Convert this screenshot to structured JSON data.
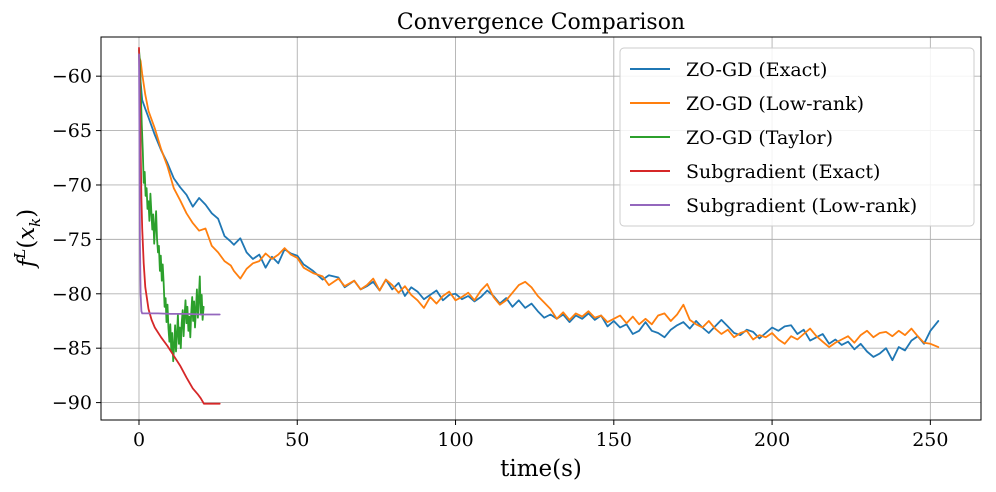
{
  "chart_data": {
    "type": "line",
    "title": "Convergence Comparison",
    "xlabel": "time(s)",
    "ylabel": "f^L(x_k)",
    "xlim": [
      -12,
      266
    ],
    "ylim": [
      -91.6,
      -56.4
    ],
    "xticks": [
      0,
      50,
      100,
      150,
      200,
      250
    ],
    "yticks": [
      -60,
      -65,
      -70,
      -75,
      -80,
      -85,
      -90
    ],
    "grid": true,
    "legend_position": "top-right",
    "series": [
      {
        "name": "ZO-GD (Exact)",
        "color": "#1f77b4",
        "x": [
          0,
          0.5,
          1,
          2,
          3,
          5,
          7,
          9,
          11,
          13,
          15,
          17,
          19,
          21,
          23,
          25,
          27,
          29,
          30,
          32,
          34,
          36,
          38,
          40,
          42,
          44,
          46,
          48,
          50,
          52,
          55,
          58,
          60,
          63,
          65,
          68,
          70,
          72,
          74,
          76,
          78,
          80,
          82,
          84,
          86,
          88,
          90,
          92,
          94,
          96,
          98,
          100,
          102,
          104,
          106,
          108,
          110,
          112,
          114,
          116,
          118,
          120,
          122,
          124,
          126,
          128,
          130,
          132,
          134,
          136,
          138,
          140,
          142,
          144,
          146,
          148,
          150,
          152,
          154,
          156,
          158,
          160,
          162,
          164,
          166,
          168,
          170,
          172,
          174,
          176,
          178,
          180,
          182,
          184,
          186,
          188,
          190,
          192,
          194,
          196,
          198,
          200,
          202,
          204,
          206,
          208,
          210,
          212,
          214,
          216,
          218,
          220,
          222,
          224,
          226,
          228,
          230,
          232,
          234,
          236,
          238,
          240,
          242,
          244,
          246,
          248,
          250,
          252.5
        ],
        "y": [
          -58.0,
          -60.5,
          -62.2,
          -63.0,
          -63.8,
          -65.4,
          -66.8,
          -68.0,
          -69.4,
          -70.2,
          -70.9,
          -72.0,
          -71.2,
          -71.8,
          -72.6,
          -73.1,
          -74.7,
          -75.2,
          -75.5,
          -74.9,
          -76.2,
          -76.8,
          -76.4,
          -77.6,
          -76.6,
          -77.2,
          -75.9,
          -76.3,
          -76.5,
          -77.3,
          -77.9,
          -78.7,
          -78.3,
          -78.5,
          -79.4,
          -78.8,
          -79.6,
          -79.3,
          -78.9,
          -79.7,
          -78.7,
          -79.6,
          -79.0,
          -80.2,
          -79.4,
          -79.8,
          -80.5,
          -80.1,
          -79.7,
          -80.6,
          -80.1,
          -80.0,
          -80.5,
          -80.2,
          -80.7,
          -80.3,
          -79.7,
          -80.2,
          -80.9,
          -80.4,
          -81.2,
          -80.6,
          -81.3,
          -80.9,
          -81.6,
          -82.2,
          -81.9,
          -82.3,
          -81.9,
          -82.6,
          -82.0,
          -82.3,
          -81.8,
          -82.4,
          -82.0,
          -83.0,
          -82.5,
          -83.1,
          -82.8,
          -83.7,
          -83.4,
          -82.6,
          -83.4,
          -83.6,
          -84.0,
          -83.3,
          -82.9,
          -82.6,
          -83.2,
          -82.5,
          -83.1,
          -83.6,
          -83.0,
          -82.4,
          -83.0,
          -83.6,
          -83.8,
          -83.3,
          -83.5,
          -84.1,
          -83.6,
          -83.1,
          -83.4,
          -83.0,
          -82.9,
          -83.7,
          -83.3,
          -84.3,
          -84.0,
          -83.7,
          -84.6,
          -84.2,
          -84.7,
          -84.4,
          -85.1,
          -84.6,
          -85.3,
          -85.8,
          -85.5,
          -85.0,
          -86.1,
          -84.9,
          -85.2,
          -84.3,
          -83.9,
          -84.6,
          -83.4,
          -82.5
        ]
      },
      {
        "name": "ZO-GD (Low-rank)",
        "color": "#ff7f0e",
        "x": [
          0,
          0.5,
          1,
          2,
          3,
          5,
          7,
          9,
          11,
          13,
          15,
          17,
          19,
          21,
          23,
          25,
          27,
          29,
          30,
          32,
          34,
          36,
          38,
          40,
          42,
          44,
          46,
          48,
          50,
          52,
          55,
          58,
          60,
          63,
          65,
          68,
          70,
          72,
          74,
          76,
          78,
          80,
          82,
          84,
          86,
          88,
          90,
          92,
          94,
          96,
          98,
          100,
          102,
          104,
          106,
          108,
          110,
          112,
          114,
          116,
          118,
          120,
          122,
          124,
          126,
          128,
          130,
          132,
          134,
          136,
          138,
          140,
          142,
          144,
          146,
          148,
          150,
          152,
          154,
          156,
          158,
          160,
          162,
          164,
          166,
          168,
          170,
          172,
          174,
          176,
          178,
          180,
          182,
          184,
          186,
          188,
          190,
          192,
          194,
          196,
          198,
          200,
          202,
          204,
          206,
          208,
          210,
          212,
          214,
          216,
          218,
          220,
          222,
          224,
          226,
          228,
          230,
          232,
          234,
          236,
          238,
          240,
          242,
          244,
          246,
          248,
          250,
          252.5
        ],
        "y": [
          -58.2,
          -58.6,
          -59.8,
          -61.7,
          -63.2,
          -64.8,
          -66.7,
          -68.3,
          -70.3,
          -71.4,
          -72.6,
          -73.5,
          -74.2,
          -74.0,
          -75.6,
          -76.2,
          -77.0,
          -77.4,
          -77.9,
          -78.6,
          -77.7,
          -77.2,
          -77.0,
          -76.3,
          -76.8,
          -76.4,
          -75.8,
          -76.4,
          -76.7,
          -77.6,
          -78.1,
          -78.4,
          -79.2,
          -78.6,
          -79.3,
          -78.8,
          -79.6,
          -79.2,
          -78.6,
          -79.7,
          -78.7,
          -79.2,
          -79.9,
          -79.3,
          -80.1,
          -80.6,
          -81.3,
          -80.3,
          -80.9,
          -80.2,
          -79.8,
          -80.6,
          -80.3,
          -79.9,
          -80.6,
          -79.7,
          -79.1,
          -80.3,
          -81.0,
          -80.6,
          -79.9,
          -79.2,
          -78.9,
          -79.4,
          -80.2,
          -80.8,
          -81.4,
          -82.3,
          -81.7,
          -82.4,
          -81.8,
          -82.1,
          -81.6,
          -82.2,
          -82.0,
          -82.6,
          -82.3,
          -82.0,
          -82.7,
          -82.1,
          -82.8,
          -82.3,
          -82.8,
          -82.0,
          -81.8,
          -82.5,
          -81.9,
          -81.0,
          -82.4,
          -82.8,
          -83.1,
          -82.5,
          -83.2,
          -83.7,
          -83.3,
          -84.0,
          -83.6,
          -83.4,
          -84.2,
          -83.8,
          -84.0,
          -83.6,
          -84.2,
          -84.6,
          -83.9,
          -84.2,
          -83.7,
          -83.2,
          -83.9,
          -84.4,
          -84.9,
          -84.5,
          -84.2,
          -83.9,
          -84.5,
          -83.8,
          -83.4,
          -84.0,
          -83.6,
          -83.5,
          -83.9,
          -83.4,
          -83.8,
          -83.2,
          -83.9,
          -84.5,
          -84.6,
          -84.9
        ]
      },
      {
        "name": "ZO-GD (Taylor)",
        "color": "#2ca02c",
        "x": [
          0,
          0.3,
          0.6,
          0.9,
          1.2,
          1.5,
          1.8,
          2.1,
          2.4,
          2.7,
          3.0,
          3.3,
          3.6,
          3.9,
          4.2,
          4.5,
          4.8,
          5.1,
          5.4,
          5.7,
          6.0,
          6.3,
          6.6,
          6.9,
          7.2,
          7.5,
          7.8,
          8.1,
          8.4,
          8.7,
          9.0,
          9.3,
          9.6,
          9.9,
          10.2,
          10.5,
          10.8,
          11.1,
          11.4,
          11.7,
          12.0,
          12.3,
          12.6,
          12.9,
          13.2,
          13.5,
          13.8,
          14.1,
          14.4,
          14.7,
          15.0,
          15.3,
          15.6,
          15.9,
          16.2,
          16.5,
          16.8,
          17.1,
          17.4,
          17.7,
          18.0,
          18.3,
          18.6,
          18.9,
          19.2,
          19.5,
          19.8,
          20.1,
          20.4
        ],
        "y": [
          -57.6,
          -58.6,
          -61.8,
          -64.5,
          -66.9,
          -69.8,
          -68.8,
          -71.0,
          -70.3,
          -72.2,
          -71.5,
          -73.3,
          -70.8,
          -72.4,
          -74.1,
          -72.7,
          -75.4,
          -73.9,
          -72.4,
          -74.9,
          -76.2,
          -75.6,
          -77.9,
          -76.5,
          -78.8,
          -77.3,
          -79.1,
          -81.2,
          -80.4,
          -82.6,
          -81.0,
          -83.1,
          -84.4,
          -82.8,
          -85.3,
          -83.6,
          -86.2,
          -84.9,
          -82.9,
          -85.3,
          -83.7,
          -81.9,
          -84.6,
          -83.1,
          -85.0,
          -82.7,
          -81.5,
          -83.9,
          -82.0,
          -80.6,
          -82.7,
          -81.2,
          -83.4,
          -82.1,
          -84.0,
          -81.8,
          -80.3,
          -82.5,
          -80.7,
          -83.1,
          -81.4,
          -79.6,
          -82.2,
          -80.5,
          -78.4,
          -81.9,
          -80.1,
          -82.4,
          -81.2
        ]
      },
      {
        "name": "Subgradient (Exact)",
        "color": "#d62728",
        "x": [
          0,
          0.25,
          0.5,
          0.75,
          1.0,
          1.5,
          2,
          3,
          4,
          5,
          7,
          9,
          11,
          13,
          15,
          17,
          18.5,
          19.5,
          20.5,
          25.5
        ],
        "y": [
          -57.4,
          -61.0,
          -66.5,
          -71.2,
          -74.0,
          -77.2,
          -79.4,
          -81.4,
          -82.4,
          -83.1,
          -84.0,
          -84.8,
          -85.7,
          -86.6,
          -87.7,
          -88.7,
          -89.2,
          -89.6,
          -90.1,
          -90.1
        ]
      },
      {
        "name": "Subgradient (Low-rank)",
        "color": "#9467bd",
        "x": [
          0,
          0.15,
          0.3,
          0.5,
          0.75,
          1.0,
          3,
          6,
          10,
          15,
          20,
          25.5
        ],
        "y": [
          -58.0,
          -66.0,
          -75.0,
          -80.0,
          -81.6,
          -81.8,
          -81.8,
          -81.8,
          -81.85,
          -81.85,
          -81.9,
          -81.9
        ]
      }
    ]
  }
}
